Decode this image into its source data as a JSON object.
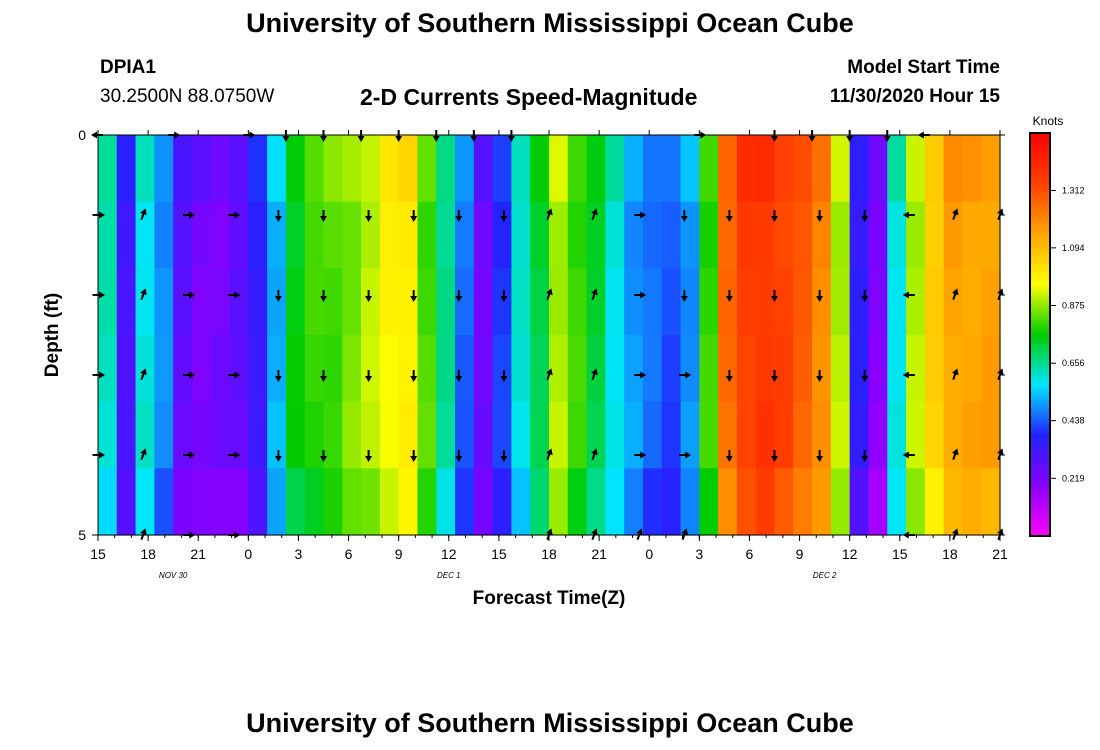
{
  "header": {
    "title": "University of Southern Mississippi Ocean Cube",
    "station_id": "DPIA1",
    "coordinates": "30.2500N 88.0750W",
    "plot_title": "2-D Currents Speed-Magnitude",
    "model_start_label": "Model Start Time",
    "model_start_value": "11/30/2020 Hour 15"
  },
  "footer": {
    "title": "University of Southern Mississippi Ocean Cube"
  },
  "chart_data": {
    "type": "heatmap",
    "title": "2-D Currents Speed-Magnitude",
    "xlabel": "Forecast Time(Z)",
    "ylabel": "Depth (ft)",
    "x_tick_labels": [
      "15",
      "18",
      "21",
      "0",
      "3",
      "6",
      "9",
      "12",
      "15",
      "18",
      "21",
      "0",
      "3",
      "6",
      "9",
      "12",
      "15",
      "18",
      "21"
    ],
    "y_tick_labels": [
      "0",
      "5"
    ],
    "ylim": [
      0,
      5
    ],
    "date_labels": [
      "NOV 30",
      "DEC 1",
      "DEC 2"
    ],
    "date_label_tick_index": [
      1.5,
      7,
      14.5
    ],
    "colorbar": {
      "unit": "Knots",
      "tick_labels": [
        "1.312",
        "1.094",
        "0.875",
        "0.656",
        "0.438",
        "0.219"
      ],
      "range": [
        0.0,
        1.53
      ],
      "stops": [
        "#ff00ff",
        "#8a00ff",
        "#2222ff",
        "#00e6ff",
        "#00cc00",
        "#ffff00",
        "#ffa500",
        "#ff4000",
        "#ff0000"
      ]
    },
    "speed_profile_knots": [
      0.62,
      0.32,
      0.6,
      0.48,
      0.27,
      0.23,
      0.23,
      0.26,
      0.35,
      0.53,
      0.75,
      0.8,
      0.82,
      0.86,
      0.9,
      0.97,
      1.0,
      0.82,
      0.65,
      0.45,
      0.25,
      0.4,
      0.6,
      0.72,
      0.9,
      0.8,
      0.72,
      0.6,
      0.5,
      0.45,
      0.42,
      0.5,
      0.8,
      1.25,
      1.35,
      1.37,
      1.33,
      1.28,
      1.2,
      0.9,
      0.35,
      0.2,
      0.6,
      0.9,
      1.05,
      1.15,
      1.15,
      1.15
    ],
    "arrow_rows": [
      [
        "L",
        "",
        "R",
        "",
        "R",
        "D",
        "D",
        "D",
        "D",
        "D",
        "D",
        "D",
        "",
        "",
        "",
        "",
        "R",
        "",
        "D",
        "D",
        "D",
        "D",
        "L",
        "",
        ""
      ],
      [
        "R",
        "U",
        "R",
        "R",
        "D",
        "D",
        "D",
        "D",
        "D",
        "D",
        "U",
        "U",
        "R",
        "D",
        "D",
        "D",
        "D",
        "D",
        "L",
        "U",
        "U"
      ],
      [
        "R",
        "U",
        "R",
        "R",
        "D",
        "D",
        "D",
        "D",
        "D",
        "D",
        "U",
        "U",
        "R",
        "D",
        "D",
        "D",
        "D",
        "D",
        "L",
        "U",
        "U"
      ],
      [
        "R",
        "U",
        "R",
        "R",
        "D",
        "D",
        "D",
        "D",
        "D",
        "D",
        "U",
        "U",
        "R",
        "R",
        "D",
        "D",
        "D",
        "D",
        "L",
        "U",
        "U"
      ],
      [
        "R",
        "U",
        "R",
        "R",
        "D",
        "D",
        "D",
        "D",
        "D",
        "D",
        "U",
        "U",
        "R",
        "R",
        "D",
        "D",
        "D",
        "D",
        "L",
        "U",
        "U"
      ],
      [
        "",
        "U",
        "R",
        "R",
        "",
        "",
        "",
        "",
        "",
        "",
        "U",
        "U",
        "U",
        "U",
        "",
        "",
        "",
        "",
        "L",
        "U",
        "U"
      ]
    ]
  }
}
